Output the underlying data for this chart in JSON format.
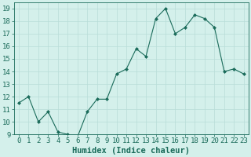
{
  "x": [
    0,
    1,
    2,
    3,
    4,
    5,
    6,
    7,
    8,
    9,
    10,
    11,
    12,
    13,
    14,
    15,
    16,
    17,
    18,
    19,
    20,
    21,
    22,
    23
  ],
  "y": [
    11.5,
    12.0,
    10.0,
    10.8,
    9.2,
    9.0,
    8.8,
    10.8,
    11.8,
    11.8,
    13.8,
    14.2,
    15.8,
    15.2,
    18.2,
    19.0,
    17.0,
    17.5,
    18.5,
    18.2,
    17.5,
    14.0,
    14.2,
    13.8
  ],
  "line_color": "#1a6b5a",
  "marker": "D",
  "marker_size": 2,
  "bg_color": "#d4f0eb",
  "grid_color": "#b8ddd8",
  "tick_color": "#1a6b5a",
  "xlabel": "Humidex (Indice chaleur)",
  "xlim": [
    -0.5,
    23.5
  ],
  "ylim": [
    9,
    19.5
  ],
  "yticks": [
    9,
    10,
    11,
    12,
    13,
    14,
    15,
    16,
    17,
    18,
    19
  ],
  "xticks": [
    0,
    1,
    2,
    3,
    4,
    5,
    6,
    7,
    8,
    9,
    10,
    11,
    12,
    13,
    14,
    15,
    16,
    17,
    18,
    19,
    20,
    21,
    22,
    23
  ],
  "xtick_labels": [
    "0",
    "1",
    "2",
    "3",
    "4",
    "5",
    "6",
    "7",
    "8",
    "9",
    "10",
    "11",
    "12",
    "13",
    "14",
    "15",
    "16",
    "17",
    "18",
    "19",
    "20",
    "21",
    "22",
    "23"
  ],
  "tick_fontsize": 6.5,
  "xlabel_fontsize": 7.5
}
